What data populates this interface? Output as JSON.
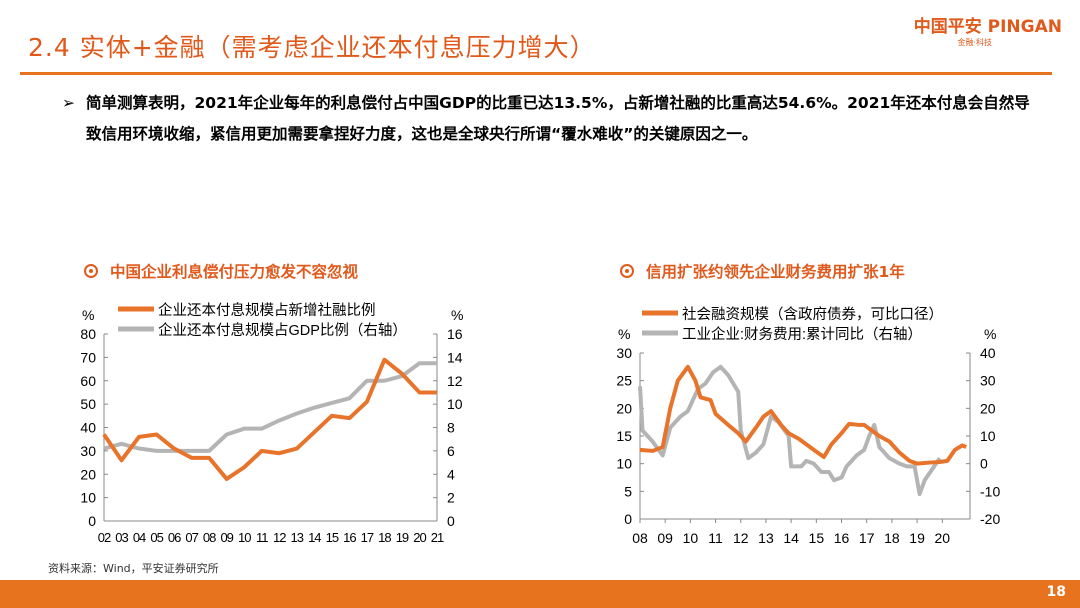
{
  "header": {
    "title": "2.4 实体+金融（需考虑企业还本付息压力增大）",
    "logo_cn": "中国平安 PINGAN",
    "logo_sub": "金融·科技"
  },
  "bullet": {
    "marker": "➢",
    "text": "简单测算表明，2021年企业每年的利息偿付占中国GDP的比重已达13.5%，占新增社融的比重高达54.6%。2021年还本付息会自然导致信用环境收缩，紧信用更加需要拿捏好力度，这也是全球央行所谓“覆水难收”的关键原因之一。"
  },
  "footer": {
    "source": "资料来源：Wind，平安证券研究所",
    "page": "18"
  },
  "colors": {
    "accent": "#e8731f",
    "orange_series": "#e8732a",
    "gray_series": "#b4b4b4"
  },
  "chart_data": [
    {
      "type": "line",
      "title": "中国企业利息偿付压力愈发不容忽视",
      "ylabel_left": "%",
      "ylabel_right": "%",
      "ylim_left": [
        0,
        80
      ],
      "ylim_right": [
        0,
        16
      ],
      "yticks_left": [
        0,
        10,
        20,
        30,
        40,
        50,
        60,
        70,
        80
      ],
      "yticks_right": [
        0,
        2,
        4,
        6,
        8,
        10,
        12,
        14,
        16
      ],
      "categories": [
        "02",
        "03",
        "04",
        "05",
        "06",
        "07",
        "08",
        "09",
        "10",
        "11",
        "12",
        "13",
        "14",
        "15",
        "16",
        "17",
        "18",
        "19",
        "20",
        "21"
      ],
      "legend": "top",
      "series": [
        {
          "name": "企业还本付息规模占新增社融比例",
          "axis": "left",
          "color": "#e8732a",
          "values": [
            37,
            26,
            36,
            37,
            31,
            27,
            27,
            18,
            23,
            30,
            29,
            31,
            38,
            45,
            44,
            51,
            69,
            63,
            55,
            55
          ]
        },
        {
          "name": "企业还本付息规模占GDP比例（右轴）",
          "axis": "right",
          "color": "#b4b4b4",
          "values": [
            6.2,
            6.6,
            6.2,
            6.0,
            6.0,
            6.0,
            6.0,
            7.4,
            7.9,
            7.9,
            8.6,
            9.2,
            9.7,
            10.1,
            10.5,
            12.0,
            12.0,
            12.4,
            13.5,
            13.5
          ]
        }
      ]
    },
    {
      "type": "line",
      "title": "信用扩张约领先企业财务费用扩张1年",
      "ylabel_left": "%",
      "ylabel_right": "%",
      "ylim_left": [
        0,
        30
      ],
      "ylim_right": [
        -20,
        40
      ],
      "yticks_left": [
        0,
        5,
        10,
        15,
        20,
        25,
        30
      ],
      "yticks_right": [
        -20,
        -10,
        0,
        10,
        20,
        30,
        40
      ],
      "xticks": [
        "08",
        "09",
        "10",
        "11",
        "12",
        "13",
        "14",
        "15",
        "16",
        "17",
        "18",
        "19",
        "20"
      ],
      "xlim": [
        2008,
        2021.1
      ],
      "legend": "top",
      "series": [
        {
          "name": "社会融资规模（含政府债券，可比口径）",
          "axis": "left",
          "color": "#e8732a",
          "points": [
            [
              2008.0,
              12.5
            ],
            [
              2008.5,
              12.3
            ],
            [
              2008.9,
              13
            ],
            [
              2009.2,
              20
            ],
            [
              2009.5,
              25
            ],
            [
              2009.9,
              27.5
            ],
            [
              2010.2,
              25
            ],
            [
              2010.4,
              22
            ],
            [
              2010.8,
              21.5
            ],
            [
              2011.0,
              19
            ],
            [
              2011.5,
              17
            ],
            [
              2011.9,
              15.5
            ],
            [
              2012.2,
              14
            ],
            [
              2012.6,
              16.5
            ],
            [
              2012.9,
              18.5
            ],
            [
              2013.2,
              19.5
            ],
            [
              2013.6,
              17
            ],
            [
              2013.9,
              15.5
            ],
            [
              2014.3,
              14.5
            ],
            [
              2014.6,
              13.5
            ],
            [
              2014.9,
              12.5
            ],
            [
              2015.3,
              11.2
            ],
            [
              2015.6,
              13.5
            ],
            [
              2016.0,
              15.5
            ],
            [
              2016.3,
              17.2
            ],
            [
              2016.7,
              17
            ],
            [
              2016.9,
              17
            ],
            [
              2017.2,
              16
            ],
            [
              2017.5,
              15
            ],
            [
              2017.9,
              14
            ],
            [
              2018.3,
              12
            ],
            [
              2018.7,
              10.5
            ],
            [
              2019.0,
              10
            ],
            [
              2019.5,
              10.2
            ],
            [
              2019.9,
              10.3
            ],
            [
              2020.2,
              10.5
            ],
            [
              2020.5,
              12.5
            ],
            [
              2020.8,
              13.3
            ],
            [
              2020.95,
              13
            ]
          ]
        },
        {
          "name": "工业企业:财务费用:累计同比（右轴）",
          "axis": "right",
          "color": "#b4b4b4",
          "points": [
            [
              2008.0,
              28
            ],
            [
              2008.1,
              12
            ],
            [
              2008.5,
              8
            ],
            [
              2008.9,
              3
            ],
            [
              2009.2,
              13
            ],
            [
              2009.6,
              17
            ],
            [
              2009.9,
              19
            ],
            [
              2010.3,
              27
            ],
            [
              2010.6,
              29
            ],
            [
              2010.9,
              33
            ],
            [
              2011.2,
              35
            ],
            [
              2011.5,
              32
            ],
            [
              2011.9,
              26
            ],
            [
              2012.0,
              12
            ],
            [
              2012.3,
              2
            ],
            [
              2012.6,
              4
            ],
            [
              2012.9,
              7
            ],
            [
              2013.2,
              17
            ],
            [
              2013.5,
              15
            ],
            [
              2013.9,
              10
            ],
            [
              2014.0,
              -1
            ],
            [
              2014.4,
              -1
            ],
            [
              2014.6,
              1
            ],
            [
              2014.9,
              0
            ],
            [
              2015.2,
              -3
            ],
            [
              2015.5,
              -3
            ],
            [
              2015.7,
              -6
            ],
            [
              2016.0,
              -5
            ],
            [
              2016.2,
              -1
            ],
            [
              2016.6,
              3
            ],
            [
              2016.9,
              5
            ],
            [
              2017.1,
              10
            ],
            [
              2017.3,
              14
            ],
            [
              2017.5,
              6
            ],
            [
              2017.9,
              2
            ],
            [
              2018.3,
              0
            ],
            [
              2018.6,
              -1
            ],
            [
              2018.9,
              -1
            ],
            [
              2019.1,
              -11
            ],
            [
              2019.3,
              -6
            ],
            [
              2019.6,
              -2
            ],
            [
              2019.9,
              2
            ]
          ]
        }
      ]
    }
  ]
}
